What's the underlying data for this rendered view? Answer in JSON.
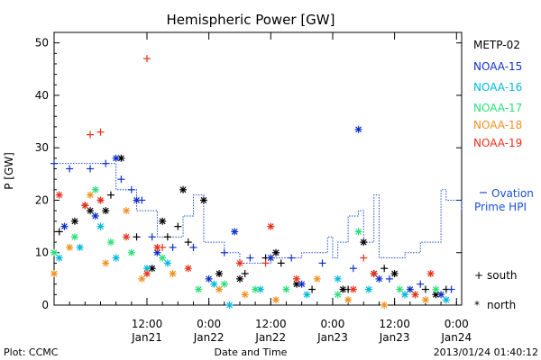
{
  "chart_data": {
    "type": "scatter",
    "title": "Hemispheric Power [GW]",
    "ylabel": "P [GW]",
    "xlabel": "Date and Time",
    "ylim": [
      0,
      52
    ],
    "xlim": [
      "2013-01-20 18:00",
      "2013-01-24 01:00"
    ],
    "y_ticks": [
      0,
      10,
      20,
      30,
      40,
      50
    ],
    "x_ticks": [
      {
        "time": "2013-01-21 12:00",
        "label": "12:00",
        "date": "Jan21"
      },
      {
        "time": "2013-01-22 00:00",
        "label": "0:00",
        "date": "Jan22"
      },
      {
        "time": "2013-01-22 12:00",
        "label": "12:00",
        "date": "Jan22"
      },
      {
        "time": "2013-01-23 00:00",
        "label": "0:00",
        "date": "Jan23"
      },
      {
        "time": "2013-01-23 12:00",
        "label": "12:00",
        "date": "Jan23"
      },
      {
        "time": "2013-01-24 00:00",
        "label": "0:00",
        "date": "Jan24"
      }
    ],
    "grid": false,
    "legend_position": "right",
    "marker_legend": [
      {
        "marker": "+",
        "label": "south"
      },
      {
        "marker": "*",
        "label": "north"
      }
    ],
    "series": [
      {
        "name": "METP-02",
        "color": "#000000",
        "marker": "+",
        "points": [
          [
            "2013-01-20 19:00",
            14
          ],
          [
            "2013-01-21 00:00",
            19
          ],
          [
            "2013-01-21 03:00",
            20
          ],
          [
            "2013-01-21 05:00",
            21
          ],
          [
            "2013-01-21 10:00",
            13
          ],
          [
            "2013-01-21 16:00",
            13
          ],
          [
            "2013-01-21 18:00",
            15
          ],
          [
            "2013-01-21 20:00",
            12
          ],
          [
            "2013-01-22 07:00",
            6
          ],
          [
            "2013-01-22 11:00",
            9
          ],
          [
            "2013-01-22 14:00",
            8
          ],
          [
            "2013-01-22 20:00",
            3
          ],
          [
            "2013-01-23 03:00",
            3
          ],
          [
            "2013-01-23 10:00",
            7
          ],
          [
            "2013-01-23 18:00",
            3
          ],
          [
            "2013-01-23 22:00",
            3
          ]
        ]
      },
      {
        "name": "METP-02",
        "color": "#000000",
        "marker": "*",
        "points": [
          [
            "2013-01-20 22:00",
            16
          ],
          [
            "2013-01-21 01:00",
            18
          ],
          [
            "2013-01-21 04:00",
            18
          ],
          [
            "2013-01-21 07:00",
            28
          ],
          [
            "2013-01-21 13:00",
            7
          ],
          [
            "2013-01-21 15:00",
            16
          ],
          [
            "2013-01-21 19:00",
            22
          ],
          [
            "2013-01-21 23:00",
            20
          ],
          [
            "2013-01-22 02:00",
            6
          ],
          [
            "2013-01-22 06:00",
            5
          ],
          [
            "2013-01-22 13:00",
            10
          ],
          [
            "2013-01-22 17:00",
            4
          ],
          [
            "2013-01-23 02:00",
            3
          ],
          [
            "2013-01-23 06:00",
            12
          ],
          [
            "2013-01-23 08:00",
            6
          ],
          [
            "2013-01-23 12:00",
            6
          ],
          [
            "2013-01-23 20:00",
            2
          ]
        ]
      },
      {
        "name": "NOAA-15",
        "color": "#1030c8",
        "marker": "+",
        "points": [
          [
            "2013-01-20 18:00",
            27
          ],
          [
            "2013-01-20 21:00",
            26
          ],
          [
            "2013-01-21 01:00",
            26
          ],
          [
            "2013-01-21 04:00",
            27
          ],
          [
            "2013-01-21 07:00",
            24
          ],
          [
            "2013-01-21 09:00",
            22
          ],
          [
            "2013-01-21 11:00",
            20
          ],
          [
            "2013-01-21 13:00",
            13
          ],
          [
            "2013-01-21 17:00",
            11
          ],
          [
            "2013-01-21 21:00",
            11
          ],
          [
            "2013-01-22 03:00",
            10
          ],
          [
            "2013-01-22 08:00",
            9
          ],
          [
            "2013-01-22 16:00",
            9
          ],
          [
            "2013-01-22 22:00",
            8
          ],
          [
            "2013-01-23 04:00",
            7
          ],
          [
            "2013-01-23 11:00",
            5
          ],
          [
            "2013-01-23 17:00",
            4
          ],
          [
            "2013-01-23 23:00",
            3
          ]
        ]
      },
      {
        "name": "NOAA-15",
        "color": "#1030c8",
        "marker": "*",
        "points": [
          [
            "2013-01-20 20:00",
            15
          ],
          [
            "2013-01-21 02:00",
            17
          ],
          [
            "2013-01-21 06:00",
            28
          ],
          [
            "2013-01-21 10:00",
            20
          ],
          [
            "2013-01-21 14:00",
            10
          ],
          [
            "2013-01-22 00:00",
            5
          ],
          [
            "2013-01-22 05:00",
            14
          ],
          [
            "2013-01-22 12:00",
            9
          ],
          [
            "2013-01-22 18:00",
            4
          ],
          [
            "2013-01-23 05:00",
            33.5
          ],
          [
            "2013-01-23 09:00",
            5
          ],
          [
            "2013-01-23 15:00",
            3
          ],
          [
            "2013-01-23 21:00",
            2
          ]
        ]
      },
      {
        "name": "NOAA-16",
        "color": "#00b8e0",
        "marker": "*",
        "points": [
          [
            "2013-01-20 19:00",
            9
          ],
          [
            "2013-01-20 23:00",
            11
          ],
          [
            "2013-01-21 03:00",
            15
          ],
          [
            "2013-01-21 06:00",
            9
          ],
          [
            "2013-01-21 12:00",
            7
          ],
          [
            "2013-01-21 16:00",
            8
          ],
          [
            "2013-01-22 01:00",
            4
          ],
          [
            "2013-01-22 04:00",
            0
          ],
          [
            "2013-01-22 10:00",
            3
          ],
          [
            "2013-01-22 19:00",
            2
          ],
          [
            "2013-01-23 01:00",
            5
          ],
          [
            "2013-01-23 07:00",
            3
          ],
          [
            "2013-01-23 14:00",
            2
          ],
          [
            "2013-01-23 22:00",
            1
          ]
        ]
      },
      {
        "name": "NOAA-17",
        "color": "#28e078",
        "marker": "*",
        "points": [
          [
            "2013-01-20 18:00",
            10
          ],
          [
            "2013-01-20 22:00",
            13
          ],
          [
            "2013-01-21 02:00",
            22
          ],
          [
            "2013-01-21 05:00",
            12
          ],
          [
            "2013-01-21 09:00",
            10
          ],
          [
            "2013-01-21 15:00",
            9
          ],
          [
            "2013-01-21 22:00",
            3
          ],
          [
            "2013-01-22 03:00",
            4
          ],
          [
            "2013-01-22 09:00",
            3
          ],
          [
            "2013-01-22 15:00",
            3
          ],
          [
            "2013-01-23 01:00",
            2
          ],
          [
            "2013-01-23 05:00",
            14
          ],
          [
            "2013-01-23 13:00",
            3
          ],
          [
            "2013-01-23 20:00",
            3
          ]
        ]
      },
      {
        "name": "NOAA-18",
        "color": "#f09020",
        "marker": "*",
        "points": [
          [
            "2013-01-20 18:00",
            6
          ],
          [
            "2013-01-20 21:00",
            11
          ],
          [
            "2013-01-21 01:00",
            21
          ],
          [
            "2013-01-21 04:00",
            8
          ],
          [
            "2013-01-21 08:00",
            18
          ],
          [
            "2013-01-21 11:00",
            5
          ],
          [
            "2013-01-21 17:00",
            6
          ],
          [
            "2013-01-22 02:00",
            3
          ],
          [
            "2013-01-22 07:00",
            2
          ],
          [
            "2013-01-22 13:00",
            1
          ],
          [
            "2013-01-22 21:00",
            5
          ],
          [
            "2013-01-23 03:00",
            1
          ],
          [
            "2013-01-23 10:00",
            0
          ],
          [
            "2013-01-23 18:00",
            1
          ]
        ]
      },
      {
        "name": "NOAA-19",
        "color": "#e83018",
        "marker": "*",
        "points": [
          [
            "2013-01-20 19:00",
            21
          ],
          [
            "2013-01-21 00:00",
            19
          ],
          [
            "2013-01-21 03:00",
            20
          ],
          [
            "2013-01-21 08:00",
            13
          ],
          [
            "2013-01-21 12:00",
            6
          ],
          [
            "2013-01-21 14:00",
            11
          ],
          [
            "2013-01-21 20:00",
            7
          ],
          [
            "2013-01-22 06:00",
            8
          ],
          [
            "2013-01-22 12:00",
            15
          ],
          [
            "2013-01-22 17:00",
            5
          ],
          [
            "2013-01-23 04:00",
            3
          ],
          [
            "2013-01-23 08:00",
            6
          ],
          [
            "2013-01-23 16:00",
            2
          ],
          [
            "2013-01-23 19:00",
            6
          ]
        ]
      },
      {
        "name": "NOAA-19",
        "color": "#e83018",
        "marker": "+",
        "points": [
          [
            "2013-01-21 01:00",
            32.5
          ],
          [
            "2013-01-21 03:00",
            33
          ],
          [
            "2013-01-21 12:00",
            47
          ],
          [
            "2013-01-21 15:00",
            11
          ],
          [
            "2013-01-22 11:00",
            8
          ],
          [
            "2013-01-23 06:00",
            9
          ]
        ]
      },
      {
        "name": "Ovation Prime HPI",
        "color": "#1a4fd8",
        "line": "dotted-step",
        "points": [
          [
            "2013-01-20 18:00",
            27
          ],
          [
            "2013-01-21 06:00",
            22
          ],
          [
            "2013-01-21 10:00",
            18
          ],
          [
            "2013-01-21 14:00",
            13
          ],
          [
            "2013-01-21 19:00",
            17
          ],
          [
            "2013-01-21 21:00",
            21
          ],
          [
            "2013-01-21 23:00",
            12
          ],
          [
            "2013-01-22 03:00",
            10
          ],
          [
            "2013-01-22 06:00",
            8
          ],
          [
            "2013-01-22 12:00",
            9
          ],
          [
            "2013-01-22 18:00",
            10
          ],
          [
            "2013-01-22 23:00",
            13
          ],
          [
            "2013-01-23 00:00",
            9
          ],
          [
            "2013-01-23 01:00",
            12
          ],
          [
            "2013-01-23 03:00",
            17
          ],
          [
            "2013-01-23 05:00",
            18
          ],
          [
            "2013-01-23 06:00",
            12
          ],
          [
            "2013-01-23 08:00",
            21
          ],
          [
            "2013-01-23 09:00",
            9
          ],
          [
            "2013-01-23 14:00",
            10
          ],
          [
            "2013-01-23 17:00",
            12
          ],
          [
            "2013-01-23 21:00",
            22
          ],
          [
            "2013-01-23 22:00",
            20
          ],
          [
            "2013-01-24 01:00",
            18
          ]
        ]
      }
    ]
  },
  "legend": {
    "items": [
      {
        "label": "METP-02",
        "color": "#000000"
      },
      {
        "label": "NOAA-15",
        "color": "#1030c8"
      },
      {
        "label": "NOAA-16",
        "color": "#00b8e0"
      },
      {
        "label": "NOAA-17",
        "color": "#28e078"
      },
      {
        "label": "NOAA-18",
        "color": "#f09020"
      },
      {
        "label": "NOAA-19",
        "color": "#e83018"
      }
    ],
    "ovation_line1": "Ovation",
    "ovation_line2": "Prime HPI",
    "ovation_color": "#1a4fd8",
    "south_marker": "+",
    "south_label": "south",
    "north_marker": "*",
    "north_label": "north"
  },
  "footer": {
    "left": "Plot: CCMC",
    "center": "Date and Time",
    "right": "2013/01/24 01:40:12"
  }
}
